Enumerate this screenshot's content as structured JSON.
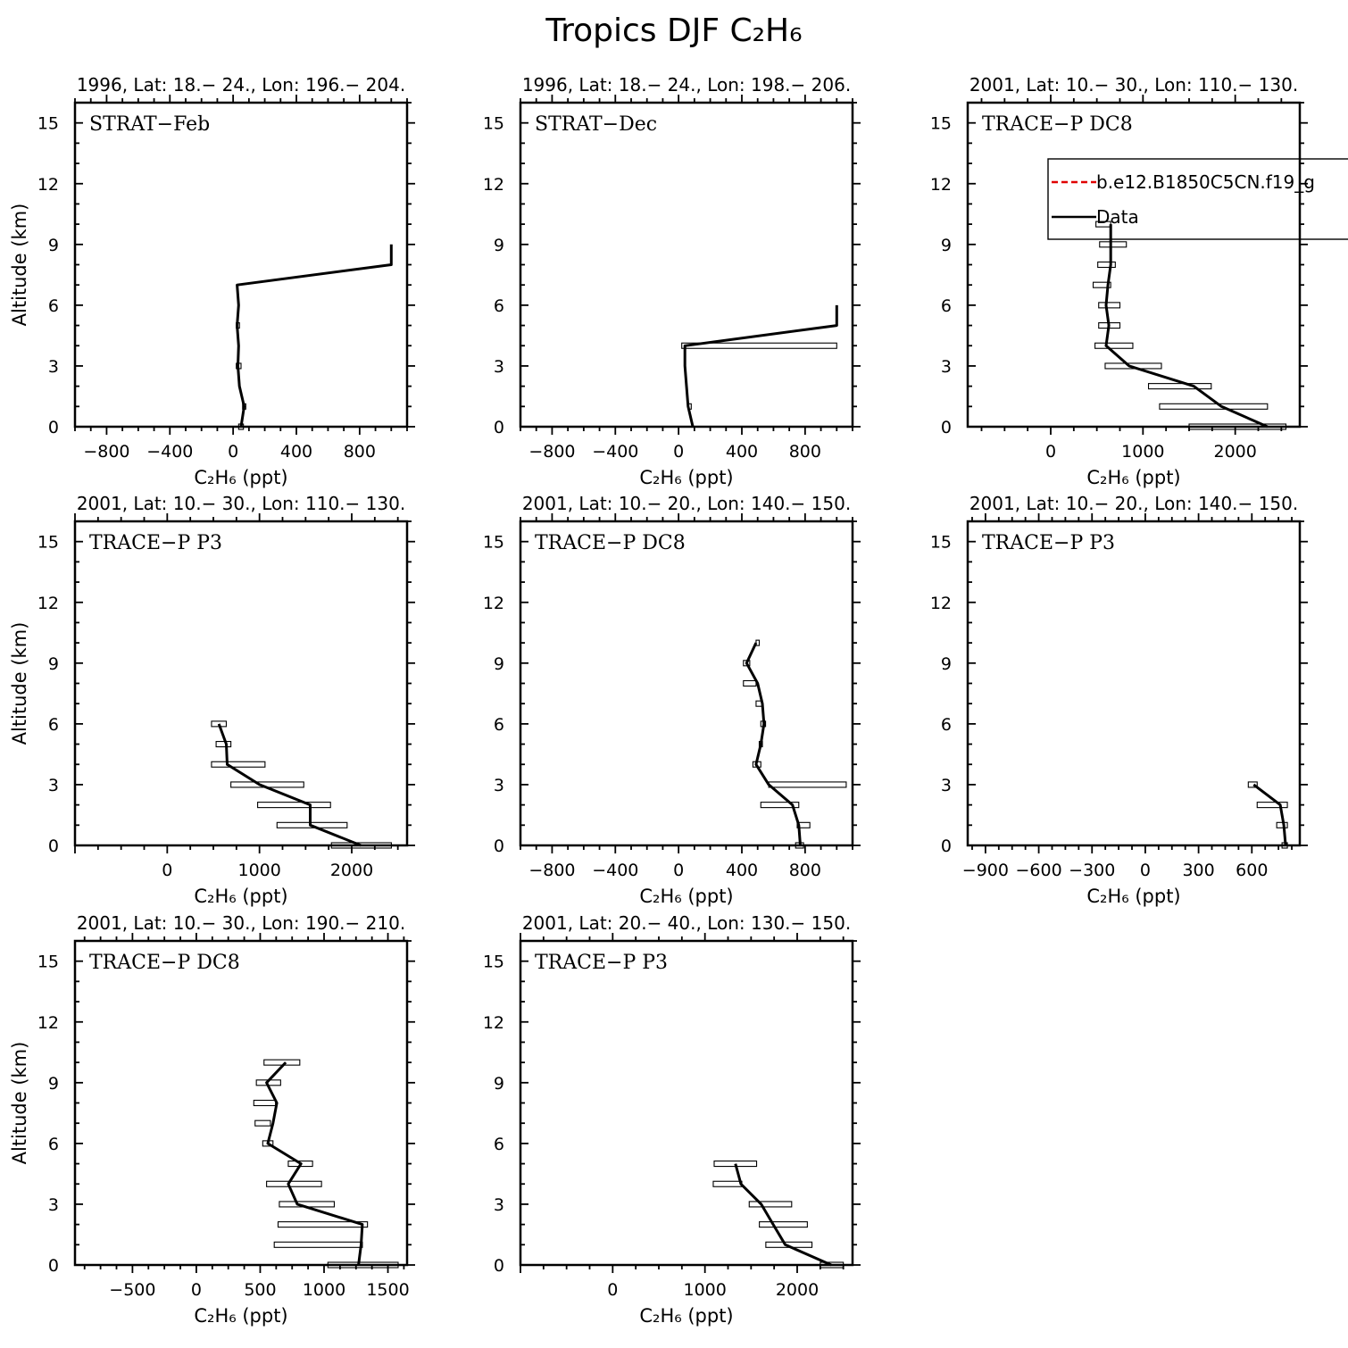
{
  "title": "Tropics DJF C₂H₆",
  "legend": {
    "items": [
      {
        "label": "b.e12.B1850C5CN.f19_g",
        "color": "#e00000",
        "dash": true
      },
      {
        "label": "Data",
        "color": "#000000",
        "dash": false
      }
    ]
  },
  "chart_data": [
    {
      "type": "line",
      "panel_label": "STRAT−Feb",
      "subtitle": "1996, Lat: 18.− 24., Lon: 196.− 204.",
      "xlabel": "C₂H₆ (ppt)",
      "ylabel": "Altitude (km)",
      "xlim": [
        -1000,
        1100
      ],
      "ylim": [
        0,
        16
      ],
      "xticks": [
        -800,
        -400,
        0,
        400,
        800
      ],
      "xtick_labels": [
        "−800",
        "−400",
        "0",
        "400",
        "800"
      ],
      "yticks": [
        0,
        3,
        6,
        9,
        12,
        15
      ],
      "ytick_labels": [
        "0",
        "3",
        "6",
        "9",
        "12",
        "15"
      ],
      "series": [
        {
          "name": "Data",
          "points": [
            [
              50,
              0
            ],
            [
              70,
              1
            ],
            [
              40,
              2
            ],
            [
              30,
              3
            ],
            [
              35,
              4
            ],
            [
              25,
              5
            ],
            [
              35,
              6
            ],
            [
              25,
              7
            ],
            [
              1000,
              8
            ],
            [
              1000,
              9
            ]
          ],
          "ranges": [
            [
              35,
              65,
              0
            ],
            [
              60,
              80,
              1
            ],
            [
              20,
              50,
              3
            ],
            [
              20,
              40,
              5
            ]
          ]
        }
      ]
    },
    {
      "type": "line",
      "panel_label": "STRAT−Dec",
      "subtitle": "1996, Lat: 18.− 24., Lon: 198.− 206.",
      "xlabel": "C₂H₆ (ppt)",
      "ylabel": "",
      "xlim": [
        -1000,
        1100
      ],
      "ylim": [
        0,
        16
      ],
      "xticks": [
        -800,
        -400,
        0,
        400,
        800
      ],
      "xtick_labels": [
        "−800",
        "−400",
        "0",
        "400",
        "800"
      ],
      "yticks": [
        0,
        3,
        6,
        9,
        12,
        15
      ],
      "ytick_labels": [
        "0",
        "3",
        "6",
        "9",
        "12",
        "15"
      ],
      "series": [
        {
          "name": "Data",
          "points": [
            [
              90,
              0
            ],
            [
              60,
              1
            ],
            [
              50,
              2
            ],
            [
              40,
              3
            ],
            [
              40,
              4
            ],
            [
              1000,
              5
            ],
            [
              1000,
              6
            ]
          ],
          "ranges": [
            [
              60,
              80,
              1
            ],
            [
              20,
              1000,
              4
            ]
          ]
        }
      ]
    },
    {
      "type": "line",
      "panel_label": "TRACE−P DC8",
      "subtitle": "2001, Lat: 10.− 30., Lon: 110.− 130.",
      "xlabel": "C₂H₆ (ppt)",
      "ylabel": "",
      "xlim": [
        -900,
        2700
      ],
      "ylim": [
        0,
        16
      ],
      "xticks": [
        0,
        1000,
        2000
      ],
      "xtick_labels": [
        "0",
        "1000",
        "2000"
      ],
      "yticks": [
        0,
        3,
        6,
        9,
        12,
        15
      ],
      "ytick_labels": [
        "0",
        "3",
        "6",
        "9",
        "12",
        "15"
      ],
      "series": [
        {
          "name": "Data",
          "points": [
            [
              2350,
              0
            ],
            [
              1850,
              1
            ],
            [
              1550,
              2
            ],
            [
              850,
              3
            ],
            [
              600,
              4
            ],
            [
              630,
              5
            ],
            [
              600,
              6
            ],
            [
              620,
              7
            ],
            [
              650,
              8
            ],
            [
              650,
              9
            ],
            [
              650,
              10
            ]
          ],
          "ranges": [
            [
              1500,
              2550,
              0
            ],
            [
              1180,
              2350,
              1
            ],
            [
              1060,
              1740,
              2
            ],
            [
              590,
              1200,
              3
            ],
            [
              480,
              890,
              4
            ],
            [
              520,
              750,
              5
            ],
            [
              520,
              750,
              6
            ],
            [
              460,
              650,
              7
            ],
            [
              510,
              700,
              8
            ],
            [
              530,
              820,
              9
            ],
            [
              490,
              650,
              10
            ]
          ]
        }
      ]
    },
    {
      "type": "line",
      "panel_label": "TRACE−P P3",
      "subtitle": "2001, Lat: 10.− 30., Lon: 110.− 130.",
      "xlabel": "C₂H₆ (ppt)",
      "ylabel": "Altitude (km)",
      "xlim": [
        -1000,
        2600
      ],
      "ylim": [
        0,
        16
      ],
      "xticks": [
        0,
        1000,
        2000
      ],
      "xtick_labels": [
        "0",
        "1000",
        "2000"
      ],
      "yticks": [
        0,
        3,
        6,
        9,
        12,
        15
      ],
      "ytick_labels": [
        "0",
        "3",
        "6",
        "9",
        "12",
        "15"
      ],
      "series": [
        {
          "name": "Data",
          "points": [
            [
              2100,
              0
            ],
            [
              1550,
              1
            ],
            [
              1550,
              2
            ],
            [
              1000,
              3
            ],
            [
              650,
              4
            ],
            [
              640,
              5
            ],
            [
              560,
              6
            ]
          ],
          "ranges": [
            [
              1780,
              2430,
              0
            ],
            [
              1190,
              1950,
              1
            ],
            [
              980,
              1770,
              2
            ],
            [
              690,
              1480,
              3
            ],
            [
              480,
              1060,
              4
            ],
            [
              530,
              690,
              5
            ],
            [
              480,
              640,
              6
            ]
          ]
        }
      ]
    },
    {
      "type": "line",
      "panel_label": "TRACE−P DC8",
      "subtitle": "2001, Lat: 10.− 20., Lon: 140.− 150.",
      "xlabel": "C₂H₆ (ppt)",
      "ylabel": "",
      "xlim": [
        -1000,
        1100
      ],
      "ylim": [
        0,
        16
      ],
      "xticks": [
        -800,
        -400,
        0,
        400,
        800
      ],
      "xtick_labels": [
        "−800",
        "−400",
        "0",
        "400",
        "800"
      ],
      "yticks": [
        0,
        3,
        6,
        9,
        12,
        15
      ],
      "ytick_labels": [
        "0",
        "3",
        "6",
        "9",
        "12",
        "15"
      ],
      "series": [
        {
          "name": "Data",
          "points": [
            [
              770,
              0
            ],
            [
              760,
              1
            ],
            [
              720,
              2
            ],
            [
              570,
              3
            ],
            [
              490,
              4
            ],
            [
              520,
              5
            ],
            [
              540,
              6
            ],
            [
              530,
              7
            ],
            [
              500,
              8
            ],
            [
              430,
              9
            ],
            [
              490,
              10
            ]
          ],
          "ranges": [
            [
              740,
              790,
              0
            ],
            [
              750,
              830,
              1
            ],
            [
              520,
              760,
              2
            ],
            [
              570,
              1060,
              3
            ],
            [
              470,
              520,
              4
            ],
            [
              510,
              530,
              5
            ],
            [
              520,
              550,
              6
            ],
            [
              490,
              530,
              7
            ],
            [
              410,
              490,
              8
            ],
            [
              410,
              450,
              9
            ],
            [
              490,
              510,
              10
            ]
          ]
        }
      ]
    },
    {
      "type": "line",
      "panel_label": "TRACE−P P3",
      "subtitle": "2001, Lat: 10.− 20., Lon: 140.− 150.",
      "xlabel": "C₂H₆ (ppt)",
      "ylabel": "",
      "xlim": [
        -1000,
        870
      ],
      "ylim": [
        0,
        16
      ],
      "xticks": [
        -900,
        -600,
        -300,
        0,
        300,
        600
      ],
      "xtick_labels": [
        "−900",
        "−600",
        "−300",
        "0",
        "300",
        "600"
      ],
      "yticks": [
        0,
        3,
        6,
        9,
        12,
        15
      ],
      "ytick_labels": [
        "0",
        "3",
        "6",
        "9",
        "12",
        "15"
      ],
      "series": [
        {
          "name": "Data",
          "points": [
            [
              790,
              0
            ],
            [
              780,
              1
            ],
            [
              760,
              2
            ],
            [
              610,
              3
            ]
          ],
          "ranges": [
            [
              770,
              800,
              0
            ],
            [
              740,
              800,
              1
            ],
            [
              630,
              800,
              2
            ],
            [
              580,
              630,
              3
            ]
          ]
        }
      ]
    },
    {
      "type": "line",
      "panel_label": "TRACE−P DC8",
      "subtitle": "2001, Lat: 10.− 30., Lon: 190.− 210.",
      "xlabel": "C₂H₆ (ppt)",
      "ylabel": "Altitude (km)",
      "xlim": [
        -950,
        1650
      ],
      "ylim": [
        0,
        16
      ],
      "xticks": [
        -500,
        0,
        500,
        1000,
        1500
      ],
      "xtick_labels": [
        "−500",
        "0",
        "500",
        "1000",
        "1500"
      ],
      "yticks": [
        0,
        3,
        6,
        9,
        12,
        15
      ],
      "ytick_labels": [
        "0",
        "3",
        "6",
        "9",
        "12",
        "15"
      ],
      "series": [
        {
          "name": "Data",
          "points": [
            [
              1270,
              0
            ],
            [
              1290,
              1
            ],
            [
              1300,
              2
            ],
            [
              790,
              3
            ],
            [
              720,
              4
            ],
            [
              820,
              5
            ],
            [
              560,
              6
            ],
            [
              600,
              7
            ],
            [
              630,
              8
            ],
            [
              550,
              9
            ],
            [
              700,
              10
            ]
          ],
          "ranges": [
            [
              1030,
              1580,
              0
            ],
            [
              610,
              1300,
              1
            ],
            [
              640,
              1340,
              2
            ],
            [
              650,
              1080,
              3
            ],
            [
              550,
              980,
              4
            ],
            [
              720,
              910,
              5
            ],
            [
              520,
              600,
              6
            ],
            [
              460,
              580,
              7
            ],
            [
              450,
              620,
              8
            ],
            [
              470,
              660,
              9
            ],
            [
              530,
              810,
              10
            ]
          ]
        }
      ]
    },
    {
      "type": "line",
      "panel_label": "TRACE−P P3",
      "subtitle": "2001, Lat: 20.− 40., Lon: 130.− 150.",
      "xlabel": "C₂H₆ (ppt)",
      "ylabel": "",
      "xlim": [
        -1000,
        2600
      ],
      "ylim": [
        0,
        16
      ],
      "xticks": [
        0,
        1000,
        2000
      ],
      "xtick_labels": [
        "0",
        "1000",
        "2000"
      ],
      "yticks": [
        0,
        3,
        6,
        9,
        12,
        15
      ],
      "ytick_labels": [
        "0",
        "3",
        "6",
        "9",
        "12",
        "15"
      ],
      "series": [
        {
          "name": "Data",
          "points": [
            [
              2370,
              0
            ],
            [
              1870,
              1
            ],
            [
              1740,
              2
            ],
            [
              1610,
              3
            ],
            [
              1390,
              4
            ],
            [
              1330,
              5
            ]
          ],
          "ranges": [
            [
              2250,
              2500,
              0
            ],
            [
              1660,
              2160,
              1
            ],
            [
              1590,
              2110,
              2
            ],
            [
              1480,
              1940,
              3
            ],
            [
              1090,
              1400,
              4
            ],
            [
              1100,
              1560,
              5
            ]
          ]
        }
      ]
    }
  ]
}
